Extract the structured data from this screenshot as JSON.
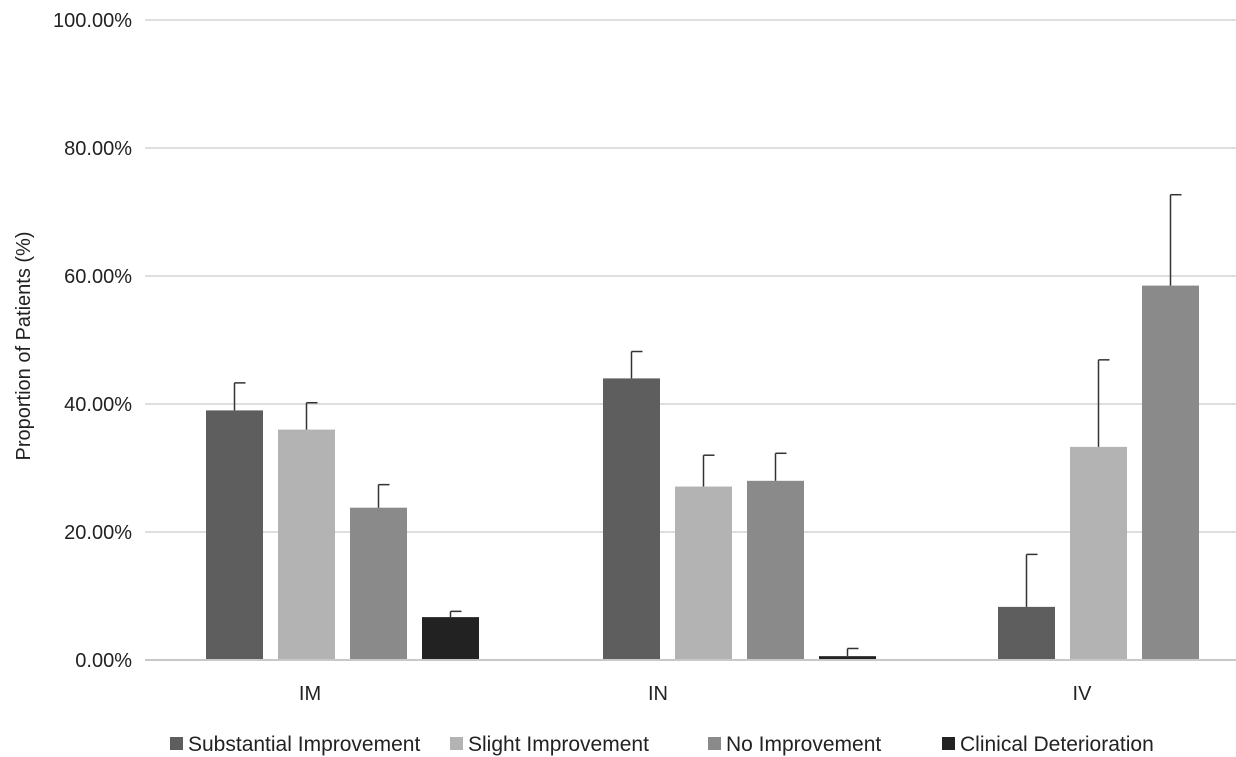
{
  "chart_data": {
    "type": "bar",
    "categories": [
      "IM",
      "IN",
      "IV"
    ],
    "ylabel": "Proportion of Patients (%)",
    "ylim": [
      0,
      100
    ],
    "yticks": [
      "0.00%",
      "20.00%",
      "40.00%",
      "60.00%",
      "80.00%",
      "100.00%"
    ],
    "grid": true,
    "legend_position": "bottom",
    "series": [
      {
        "name": "Substantial Improvement",
        "color": "#5e5e5e",
        "values": [
          39.0,
          44.0,
          8.3
        ],
        "errors": [
          4.3,
          4.2,
          8.2
        ]
      },
      {
        "name": "Slight Improvement",
        "color": "#b3b3b3",
        "values": [
          36.0,
          27.1,
          33.3
        ],
        "errors": [
          4.2,
          4.9,
          13.6
        ]
      },
      {
        "name": "No Improvement",
        "color": "#8a8a8a",
        "values": [
          23.8,
          28.0,
          58.5
        ],
        "errors": [
          3.6,
          4.3,
          14.2
        ]
      },
      {
        "name": "Clinical Deterioration",
        "color": "#222222",
        "values": [
          6.7,
          0.6,
          null
        ],
        "errors": [
          0.9,
          1.2,
          null
        ]
      }
    ]
  }
}
